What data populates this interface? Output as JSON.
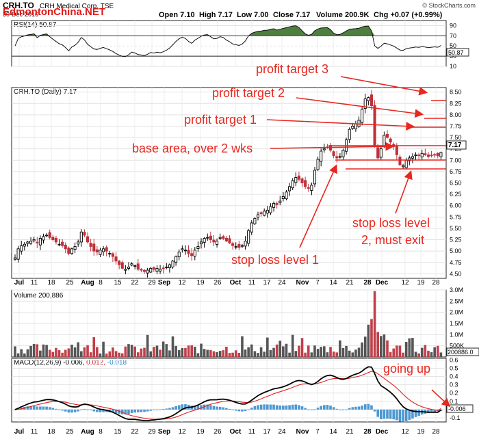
{
  "header": {
    "symbol": "CRH.TO",
    "company": "CRH Medical Corp.  TSE",
    "date": "30-Dec-2016",
    "watermark": "EdmontonChina.NET",
    "source": "© StockCharts.com",
    "open": "Open 7.10",
    "high": "High 7.17",
    "low": "Low 7.00",
    "close": "Close 7.17",
    "volume": "Volume 200.9K",
    "change": "Chg +0.07 (+0.99%)"
  },
  "panels": {
    "rsi_label": "RSI(14) 50.87",
    "price_label": "CRH.TO (Daily) 7.17",
    "volume_label": "Volume 200,886",
    "macd_label": "MACD(12,26,9) -0.006,",
    "macd_val2": " 0.012,",
    "macd_val3": " -0.018",
    "rsi_value_tag": "50.87",
    "price_value_tag": "7.17",
    "volume_value_tag": "200886.0",
    "macd_value_tag": "-0.006"
  },
  "annotations": {
    "profit_target_3": "profit target 3",
    "profit_target_2": "profit target 2",
    "profit_target_1": "profit target 1",
    "base_area": "base area, over 2 wks",
    "stop_loss_1": "stop loss level 1",
    "stop_loss_2_line1": "stop loss level",
    "stop_loss_2_line2": "2, must exit",
    "going_up": "going up"
  },
  "colors": {
    "up_candle": "#000000",
    "down_candle": "#c0303a",
    "annotation": "#e8271f",
    "rsi_fill": "#4f7f3f",
    "macd_hist": "#2f86c8",
    "volume_down": "#c0404a",
    "volume_up": "#555555"
  },
  "chart_data": [
    {
      "type": "line",
      "panel": "RSI",
      "ylim": [
        10,
        100
      ],
      "y_ticks": [
        "90",
        "70",
        "50",
        "30",
        "10"
      ],
      "series": [
        {
          "name": "RSI(14)",
          "last": 50.87
        }
      ]
    },
    {
      "type": "candlestick",
      "panel": "Price",
      "ylim": [
        4.4,
        8.6
      ],
      "y_ticks": [
        "8.50",
        "8.25",
        "8.00",
        "7.75",
        "7.50",
        "7.25",
        "7.00",
        "6.75",
        "6.50",
        "6.25",
        "6.00",
        "5.75",
        "5.50",
        "5.25",
        "5.00",
        "4.75",
        "4.50"
      ],
      "x_labels": [
        "Jul",
        "11",
        "18",
        "25",
        "Aug",
        "8",
        "15",
        "22",
        "29",
        "Sep",
        "12",
        "19",
        "26",
        "Oct",
        "11",
        "17",
        "24",
        "Nov",
        "7",
        "14",
        "21",
        "28",
        "Dec",
        "12",
        "19",
        "28"
      ],
      "closes": [
        4.85,
        5.05,
        5.12,
        5.15,
        5.2,
        5.22,
        5.25,
        5.18,
        5.28,
        5.32,
        5.35,
        5.3,
        5.25,
        5.2,
        5.15,
        5.12,
        5.05,
        4.95,
        5.05,
        5.1,
        5.2,
        5.42,
        5.35,
        5.2,
        5.1,
        5.0,
        4.98,
        5.02,
        5.05,
        5.0,
        4.95,
        4.88,
        4.78,
        4.7,
        4.62,
        4.6,
        4.65,
        4.72,
        4.68,
        4.6,
        4.58,
        4.55,
        4.58,
        4.62,
        4.6,
        4.62,
        4.6,
        4.62,
        4.65,
        4.7,
        4.78,
        4.88,
        4.98,
        5.05,
        5.02,
        4.95,
        4.9,
        5.02,
        5.1,
        5.2,
        5.28,
        5.3,
        5.25,
        5.2,
        5.22,
        5.3,
        5.28,
        5.22,
        5.18,
        5.12,
        5.1,
        5.08,
        5.12,
        5.22,
        5.45,
        5.62,
        5.72,
        5.8,
        5.82,
        5.88,
        5.9,
        5.98,
        6.05,
        6.02,
        6.1,
        6.2,
        6.3,
        6.42,
        6.55,
        6.62,
        6.58,
        6.5,
        6.42,
        6.38,
        6.45,
        6.78,
        7.02,
        7.2,
        7.25,
        7.28,
        7.22,
        7.1,
        7.05,
        7.08,
        7.22,
        7.45,
        7.68,
        7.75,
        7.8,
        7.88,
        8.12,
        8.35,
        8.38,
        8.2,
        7.3,
        7.05,
        7.25,
        7.55,
        7.5,
        7.4,
        7.3,
        7.12,
        6.9,
        6.88,
        7.0,
        7.05,
        7.08,
        7.12,
        7.1,
        7.15,
        7.12,
        7.08,
        7.1,
        7.12,
        7.1,
        7.17
      ],
      "levels": {
        "stop_loss_1": 6.5,
        "stop_loss_2": 6.7,
        "base_top": 7.0,
        "profit_target_1": 7.5,
        "profit_target_2": 7.75,
        "profit_target_3": 8.25
      },
      "last": 7.17
    },
    {
      "type": "bar",
      "panel": "Volume",
      "ylim": [
        0,
        3000000
      ],
      "y_ticks": [
        "3.0M",
        "2.5M",
        "2.0M",
        "1.5M",
        "1.0M",
        "500K"
      ],
      "series": [
        {
          "name": "Volume",
          "last": 200886
        }
      ]
    },
    {
      "type": "line",
      "panel": "MACD",
      "ylim": [
        -0.15,
        0.62
      ],
      "y_ticks": [
        "0.6",
        "0.5",
        "0.4",
        "0.3",
        "0.2",
        "0.1",
        "0.0",
        "-0.1"
      ],
      "series": [
        {
          "name": "MACD(12,26,9)",
          "last": -0.006
        },
        {
          "name": "signal",
          "last": 0.012
        },
        {
          "name": "histogram",
          "last": -0.018
        }
      ]
    }
  ]
}
